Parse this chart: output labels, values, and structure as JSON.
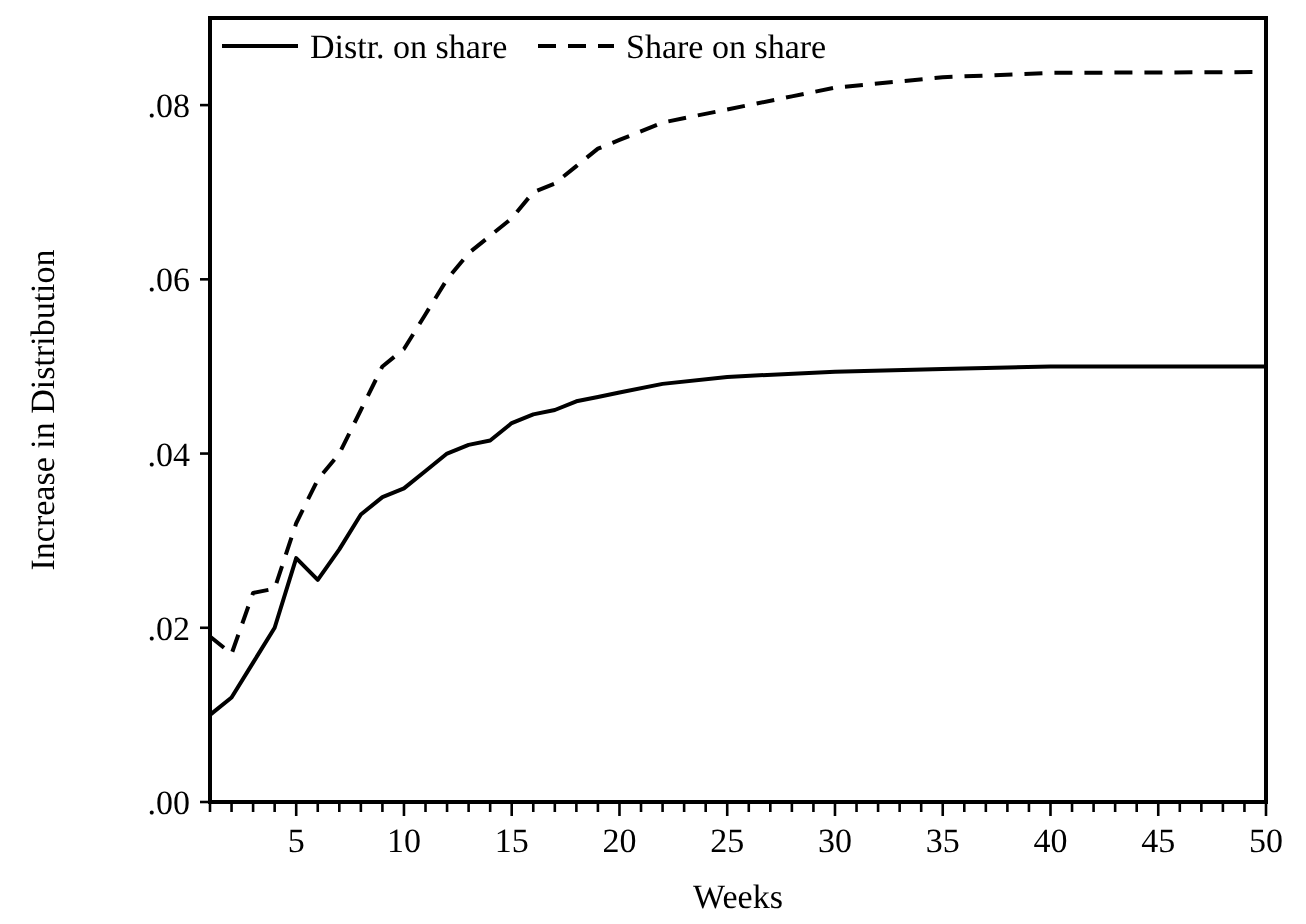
{
  "chart_data": {
    "type": "line",
    "xlabel": "Weeks",
    "ylabel": "Increase in Distribution",
    "xlim": [
      1,
      50
    ],
    "ylim": [
      0,
      0.09
    ],
    "yticks": [
      {
        "value": 0,
        "label": ".00"
      },
      {
        "value": 0.02,
        "label": ".02"
      },
      {
        "value": 0.04,
        "label": ".04"
      },
      {
        "value": 0.06,
        "label": ".06"
      },
      {
        "value": 0.08,
        "label": ".08"
      }
    ],
    "xticks": [
      {
        "value": 1,
        "label": null
      },
      {
        "value": 2,
        "label": null
      },
      {
        "value": 3,
        "label": null
      },
      {
        "value": 4,
        "label": null
      },
      5,
      {
        "value": 6,
        "label": null
      },
      {
        "value": 7,
        "label": null
      },
      {
        "value": 8,
        "label": null
      },
      {
        "value": 9,
        "label": null
      },
      10,
      {
        "value": 11,
        "label": null
      },
      {
        "value": 12,
        "label": null
      },
      {
        "value": 13,
        "label": null
      },
      {
        "value": 14,
        "label": null
      },
      15,
      {
        "value": 16,
        "label": null
      },
      {
        "value": 17,
        "label": null
      },
      {
        "value": 18,
        "label": null
      },
      {
        "value": 19,
        "label": null
      },
      20,
      {
        "value": 21,
        "label": null
      },
      {
        "value": 22,
        "label": null
      },
      {
        "value": 23,
        "label": null
      },
      {
        "value": 24,
        "label": null
      },
      25,
      {
        "value": 26,
        "label": null
      },
      {
        "value": 27,
        "label": null
      },
      {
        "value": 28,
        "label": null
      },
      {
        "value": 29,
        "label": null
      },
      30,
      {
        "value": 31,
        "label": null
      },
      {
        "value": 32,
        "label": null
      },
      {
        "value": 33,
        "label": null
      },
      {
        "value": 34,
        "label": null
      },
      35,
      {
        "value": 36,
        "label": null
      },
      {
        "value": 37,
        "label": null
      },
      {
        "value": 38,
        "label": null
      },
      {
        "value": 39,
        "label": null
      },
      40,
      {
        "value": 41,
        "label": null
      },
      {
        "value": 42,
        "label": null
      },
      {
        "value": 43,
        "label": null
      },
      {
        "value": 44,
        "label": null
      },
      45,
      {
        "value": 46,
        "label": null
      },
      {
        "value": 47,
        "label": null
      },
      {
        "value": 48,
        "label": null
      },
      {
        "value": 49,
        "label": null
      },
      50
    ],
    "grid": false,
    "legend": "top left",
    "series": [
      {
        "name": "Distr. on share",
        "color": "#000000",
        "line_style": "solid",
        "x": [
          1,
          2,
          3,
          4,
          5,
          6,
          7,
          8,
          9,
          10,
          11,
          12,
          13,
          14,
          15,
          16,
          17,
          18,
          19,
          20,
          22,
          25,
          30,
          35,
          40,
          50
        ],
        "values": [
          0.01,
          0.012,
          0.016,
          0.02,
          0.028,
          0.0255,
          0.029,
          0.033,
          0.035,
          0.036,
          0.038,
          0.04,
          0.041,
          0.0415,
          0.0435,
          0.0445,
          0.045,
          0.046,
          0.0465,
          0.047,
          0.048,
          0.0488,
          0.0494,
          0.0497,
          0.05,
          0.05
        ]
      },
      {
        "name": "Share on share",
        "color": "#000000",
        "line_style": "dashed",
        "x": [
          1,
          2,
          3,
          4,
          5,
          6,
          7,
          8,
          9,
          10,
          11,
          12,
          13,
          14,
          15,
          16,
          17,
          18,
          19,
          20,
          22,
          25,
          28,
          30,
          35,
          40,
          50
        ],
        "values": [
          0.019,
          0.017,
          0.024,
          0.0245,
          0.032,
          0.037,
          0.04,
          0.045,
          0.05,
          0.052,
          0.056,
          0.06,
          0.063,
          0.065,
          0.067,
          0.07,
          0.071,
          0.073,
          0.075,
          0.076,
          0.078,
          0.0795,
          0.081,
          0.082,
          0.0832,
          0.0837,
          0.0838
        ]
      }
    ]
  }
}
